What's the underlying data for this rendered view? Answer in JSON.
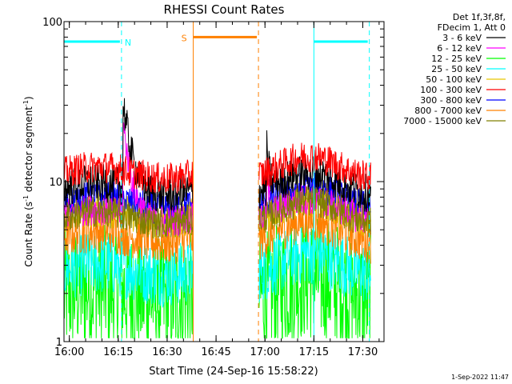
{
  "chart_data": {
    "type": "line",
    "title": "RHESSI Count Rates",
    "xlabel": "Start Time (24-Sep-16 15:58:22)",
    "ylabel_main": "Count Rate (s",
    "ylabel_sup": "-1",
    "ylabel_rest": " detector segment",
    "ylabel_sup2": "-1",
    "ylabel_end": ")",
    "yscale": "log",
    "ylim": [
      1,
      100
    ],
    "xlim": [
      "15:58:22",
      "17:36:30"
    ],
    "x_ticks": [
      "16:00",
      "16:15",
      "16:30",
      "16:45",
      "17:00",
      "17:15",
      "17:30"
    ],
    "y_ticks": [
      "1",
      "10",
      "100"
    ],
    "legend_header": [
      "Det 1f,3f,8f,",
      "FDecim 1, Att 0"
    ],
    "legend_placement": "right",
    "timestamp": "1-Sep-2022 11:47",
    "gap": [
      "16:38:00",
      "16:58:00"
    ],
    "series": [
      {
        "name": "3 - 6 keV",
        "color": "#000000",
        "base": 9.5,
        "noise": 0.12,
        "spike1": 2.4,
        "spike2": 0.9
      },
      {
        "name": "6 - 12 keV",
        "color": "#ff00ff",
        "base": 6.5,
        "noise": 0.1,
        "spike1": 2.6,
        "spike2": 1.0
      },
      {
        "name": "12 - 25 keV",
        "color": "#00ff00",
        "base": 2.1,
        "noise": 0.4,
        "spike1": 0,
        "spike2": 0
      },
      {
        "name": "25 - 50 keV",
        "color": "#00ffff",
        "base": 3.0,
        "noise": 0.2,
        "spike1": 0,
        "spike2": 0
      },
      {
        "name": "50 - 100 keV",
        "color": "#e6c800",
        "base": 6.6,
        "noise": 0.12,
        "spike1": 0,
        "spike2": 0
      },
      {
        "name": "100 - 300 keV",
        "color": "#ff0000",
        "base": 12.0,
        "noise": 0.1,
        "spike1": 0,
        "spike2": 0
      },
      {
        "name": "300 - 800 keV",
        "color": "#0000ff",
        "base": 7.8,
        "noise": 0.1,
        "spike1": 0,
        "spike2": 0
      },
      {
        "name": "800 - 7000 keV",
        "color": "#ff8000",
        "base": 4.8,
        "noise": 0.14,
        "spike1": 0,
        "spike2": 0
      },
      {
        "name": "7000 - 15000 keV",
        "color": "#808000",
        "base": 6.3,
        "noise": 0.1,
        "spike1": 0,
        "spike2": 0
      }
    ],
    "markers": [
      {
        "label": "N",
        "color": "#00ffff",
        "start": "15:58:22",
        "end": "16:16:00",
        "level": 75
      },
      {
        "label": "S",
        "color": "#ff8000",
        "start": "16:38:00",
        "end": "16:58:00",
        "level": 80
      },
      {
        "label": "",
        "color": "#00ffff",
        "start": "17:15:00",
        "end": "17:32:00",
        "level": 75
      }
    ]
  }
}
